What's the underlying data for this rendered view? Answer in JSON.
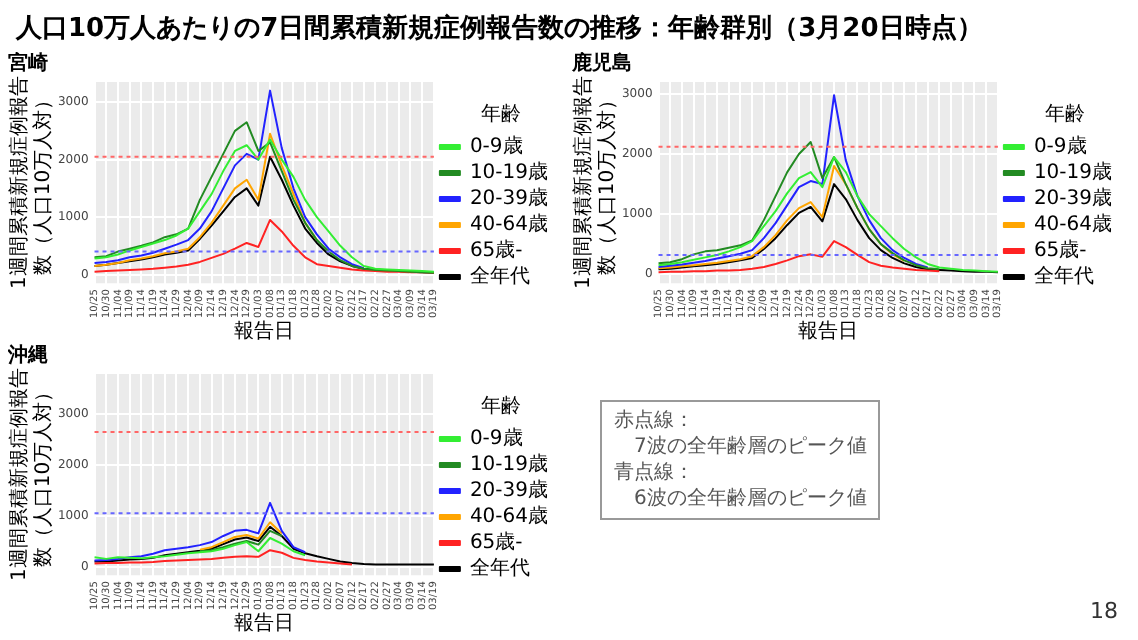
{
  "chart_data": [
    {
      "type": "line",
      "title": "宮崎",
      "xlabel": "報告日",
      "ylabel": "1週間累積新規症例報告数（人口10万人対）",
      "legend_title": "年齢",
      "legend": "right",
      "grid": true,
      "marker": "none",
      "line_style": "solid",
      "categories": [
        "10/25",
        "10/30",
        "11/04",
        "11/09",
        "11/14",
        "11/19",
        "11/24",
        "11/29",
        "12/04",
        "12/09",
        "12/14",
        "12/19",
        "12/24",
        "12/29",
        "01/03",
        "01/08",
        "01/13",
        "01/18",
        "01/23",
        "01/28",
        "02/02",
        "02/07",
        "02/12",
        "02/17",
        "02/22",
        "02/27",
        "03/04",
        "03/09",
        "03/14",
        "03/19"
      ],
      "ylim": [
        -150,
        3350
      ],
      "yticks": [
        0,
        1000,
        2000,
        3000
      ],
      "ref_lines": [
        {
          "axis": "y",
          "value": 2050,
          "color": "#ff6666",
          "line_style": "dotted"
        },
        {
          "axis": "y",
          "value": 400,
          "color": "#6666ff",
          "line_style": "dotted"
        }
      ],
      "series": [
        {
          "name": "0-9歳",
          "color": "#33ee33",
          "values": [
            280,
            300,
            350,
            420,
            480,
            540,
            600,
            680,
            800,
            1100,
            1400,
            1800,
            2150,
            2250,
            2000,
            2350,
            2000,
            1700,
            1300,
            1000,
            750,
            500,
            300,
            150,
            100,
            90,
            80,
            70,
            60,
            50
          ]
        },
        {
          "name": "10-19歳",
          "color": "#228b22",
          "values": [
            300,
            320,
            400,
            450,
            500,
            560,
            650,
            700,
            800,
            1300,
            1700,
            2100,
            2500,
            2650,
            2150,
            2300,
            1800,
            1300,
            900,
            600,
            400,
            250,
            150,
            100,
            80,
            70,
            60,
            50,
            40,
            30
          ]
        },
        {
          "name": "20-39歳",
          "color": "#2222ff",
          "values": [
            200,
            220,
            250,
            300,
            330,
            380,
            450,
            520,
            600,
            800,
            1100,
            1500,
            1900,
            2100,
            2000,
            3200,
            2200,
            1500,
            1000,
            700,
            450,
            300,
            180,
            110,
            null,
            null,
            null,
            null,
            null,
            null
          ]
        },
        {
          "name": "40-64歳",
          "color": "#ffa500",
          "values": [
            150,
            170,
            200,
            250,
            280,
            320,
            370,
            400,
            450,
            650,
            900,
            1200,
            1500,
            1650,
            1300,
            2450,
            1900,
            1400,
            900,
            600,
            null,
            null,
            null,
            null,
            null,
            null,
            null,
            null,
            null,
            null
          ]
        },
        {
          "name": "65歳-",
          "color": "#ff2222",
          "values": [
            50,
            60,
            70,
            80,
            90,
            100,
            120,
            140,
            170,
            220,
            290,
            360,
            450,
            550,
            480,
            950,
            750,
            500,
            300,
            180,
            150,
            120,
            90,
            70,
            60,
            50,
            50,
            40,
            40,
            30
          ]
        },
        {
          "name": "全年代",
          "color": "#000000",
          "values": [
            150,
            170,
            200,
            230,
            260,
            300,
            350,
            380,
            420,
            620,
            850,
            1100,
            1350,
            1500,
            1200,
            2050,
            1650,
            1200,
            800,
            550,
            350,
            230,
            150,
            100,
            80,
            70,
            60,
            50,
            40,
            30
          ]
        }
      ]
    },
    {
      "type": "line",
      "title": "鹿児島",
      "xlabel": "報告日",
      "ylabel": "1週間累積新規症例報告数（人口10万人対）",
      "legend_title": "年齢",
      "legend": "right",
      "grid": true,
      "marker": "none",
      "line_style": "solid",
      "categories": [
        "10/25",
        "10/30",
        "11/04",
        "11/09",
        "11/14",
        "11/19",
        "11/24",
        "11/29",
        "12/04",
        "12/09",
        "12/14",
        "12/19",
        "12/24",
        "12/29",
        "01/03",
        "01/08",
        "01/13",
        "01/18",
        "01/23",
        "01/28",
        "02/02",
        "02/07",
        "02/12",
        "02/17",
        "02/22",
        "02/27",
        "03/04",
        "03/09",
        "03/14",
        "03/19"
      ],
      "ylim": [
        -150,
        3200
      ],
      "yticks": [
        0,
        1000,
        2000,
        3000
      ],
      "ref_lines": [
        {
          "axis": "y",
          "value": 2120,
          "color": "#ff6666",
          "line_style": "dotted"
        },
        {
          "axis": "y",
          "value": 320,
          "color": "#6666ff",
          "line_style": "dotted"
        }
      ],
      "series": [
        {
          "name": "0-9歳",
          "color": "#33ee33",
          "values": [
            150,
            170,
            200,
            240,
            280,
            320,
            380,
            450,
            550,
            800,
            1050,
            1350,
            1600,
            1700,
            1450,
            1950,
            1700,
            1300,
            1000,
            800,
            600,
            420,
            280,
            170,
            110,
            90,
            70,
            60,
            50,
            40
          ]
        },
        {
          "name": "10-19歳",
          "color": "#228b22",
          "values": [
            180,
            200,
            250,
            330,
            380,
            400,
            440,
            480,
            560,
            900,
            1300,
            1700,
            2000,
            2200,
            1600,
            1950,
            1500,
            1100,
            750,
            500,
            350,
            230,
            150,
            100,
            80,
            null,
            null,
            null,
            null,
            null
          ]
        },
        {
          "name": "20-39歳",
          "color": "#2222ff",
          "values": [
            120,
            140,
            160,
            190,
            220,
            260,
            300,
            340,
            400,
            600,
            850,
            1150,
            1450,
            1550,
            1500,
            2980,
            1900,
            1300,
            900,
            600,
            400,
            270,
            170,
            110,
            null,
            null,
            null,
            null,
            null,
            null
          ]
        },
        {
          "name": "40-64歳",
          "color": "#ffa500",
          "values": [
            100,
            110,
            130,
            150,
            170,
            190,
            220,
            250,
            300,
            450,
            650,
            900,
            1100,
            1200,
            950,
            1800,
            1500,
            1100,
            750,
            500,
            330,
            220,
            null,
            null,
            null,
            null,
            null,
            null,
            null,
            null
          ]
        },
        {
          "name": "65歳-",
          "color": "#ff2222",
          "values": [
            30,
            40,
            40,
            50,
            50,
            60,
            60,
            70,
            90,
            120,
            170,
            230,
            300,
            330,
            290,
            550,
            450,
            320,
            200,
            140,
            110,
            90,
            70,
            60,
            50,
            null,
            null,
            null,
            null,
            null
          ]
        },
        {
          "name": "全年代",
          "color": "#000000",
          "values": [
            80,
            90,
            110,
            130,
            150,
            170,
            200,
            230,
            270,
            420,
            600,
            820,
            1020,
            1120,
            880,
            1500,
            1250,
            900,
            600,
            400,
            270,
            180,
            120,
            80,
            70,
            60,
            50,
            40,
            40,
            30
          ]
        }
      ]
    },
    {
      "type": "line",
      "title": "沖縄",
      "xlabel": "報告日",
      "ylabel": "1週間累積新規症例報告数（人口10万人対）",
      "legend_title": "年齢",
      "legend": "right",
      "grid": true,
      "marker": "none",
      "line_style": "solid",
      "categories": [
        "10/25",
        "10/30",
        "11/04",
        "11/09",
        "11/14",
        "11/19",
        "11/24",
        "11/29",
        "12/04",
        "12/09",
        "12/14",
        "12/19",
        "12/24",
        "12/29",
        "01/03",
        "01/08",
        "01/13",
        "01/18",
        "01/23",
        "01/28",
        "02/02",
        "02/07",
        "02/12",
        "02/17",
        "02/22",
        "02/27",
        "03/04",
        "03/09",
        "03/14",
        "03/19"
      ],
      "ylim": [
        -170,
        3780
      ],
      "yticks": [
        0,
        1000,
        2000,
        3000
      ],
      "ref_lines": [
        {
          "axis": "y",
          "value": 2640,
          "color": "#ff6666",
          "line_style": "dotted"
        },
        {
          "axis": "y",
          "value": 1045,
          "color": "#6666ff",
          "line_style": "dotted"
        }
      ],
      "series": [
        {
          "name": "0-9歳",
          "color": "#33ee33",
          "values": [
            180,
            150,
            180,
            170,
            160,
            180,
            200,
            230,
            260,
            280,
            300,
            350,
            420,
            480,
            300,
            560,
            450,
            300,
            220,
            null,
            null,
            null,
            null,
            null,
            null,
            null,
            null,
            null,
            null,
            null
          ]
        },
        {
          "name": "10-19歳",
          "color": "#228b22",
          "values": [
            null,
            null,
            null,
            null,
            null,
            null,
            null,
            null,
            null,
            300,
            320,
            380,
            450,
            500,
            430,
            700,
            600,
            null,
            null,
            null,
            null,
            null,
            null,
            null,
            null,
            null,
            null,
            null,
            null,
            null
          ]
        },
        {
          "name": "20-39歳",
          "color": "#2222ff",
          "values": [
            120,
            130,
            150,
            180,
            200,
            250,
            320,
            350,
            380,
            420,
            480,
            600,
            700,
            720,
            650,
            1250,
            700,
            380,
            280,
            null,
            null,
            null,
            null,
            null,
            null,
            null,
            null,
            null,
            null,
            null
          ]
        },
        {
          "name": "40-64歳",
          "color": "#ffa500",
          "values": [
            null,
            null,
            null,
            null,
            null,
            null,
            null,
            null,
            null,
            330,
            380,
            480,
            580,
            620,
            550,
            870,
            650,
            null,
            null,
            null,
            null,
            null,
            null,
            null,
            null,
            null,
            null,
            null,
            null,
            null
          ]
        },
        {
          "name": "65歳-",
          "color": "#ff2222",
          "values": [
            60,
            70,
            70,
            80,
            80,
            90,
            110,
            120,
            130,
            140,
            150,
            170,
            190,
            200,
            190,
            320,
            270,
            170,
            130,
            100,
            80,
            60,
            40,
            null,
            null,
            null,
            null,
            null,
            null,
            null
          ]
        },
        {
          "name": "全年代",
          "color": "#000000",
          "values": [
            100,
            100,
            120,
            140,
            150,
            170,
            220,
            250,
            280,
            310,
            350,
            440,
            530,
            570,
            500,
            780,
            600,
            350,
            260,
            200,
            150,
            100,
            70,
            50,
            40,
            40,
            40,
            40,
            40,
            40
          ]
        }
      ]
    },
    {
      "type": "other",
      "title": "人口10万人あたりの7日間累積新規症例報告数の推移：年齢群別（3月20日時点）",
      "annotations": [
        "赤点線：",
        "7波の全年齢層のピーク値",
        "青点線：",
        "6波の全年齢層のピーク値",
        "18"
      ]
    }
  ]
}
